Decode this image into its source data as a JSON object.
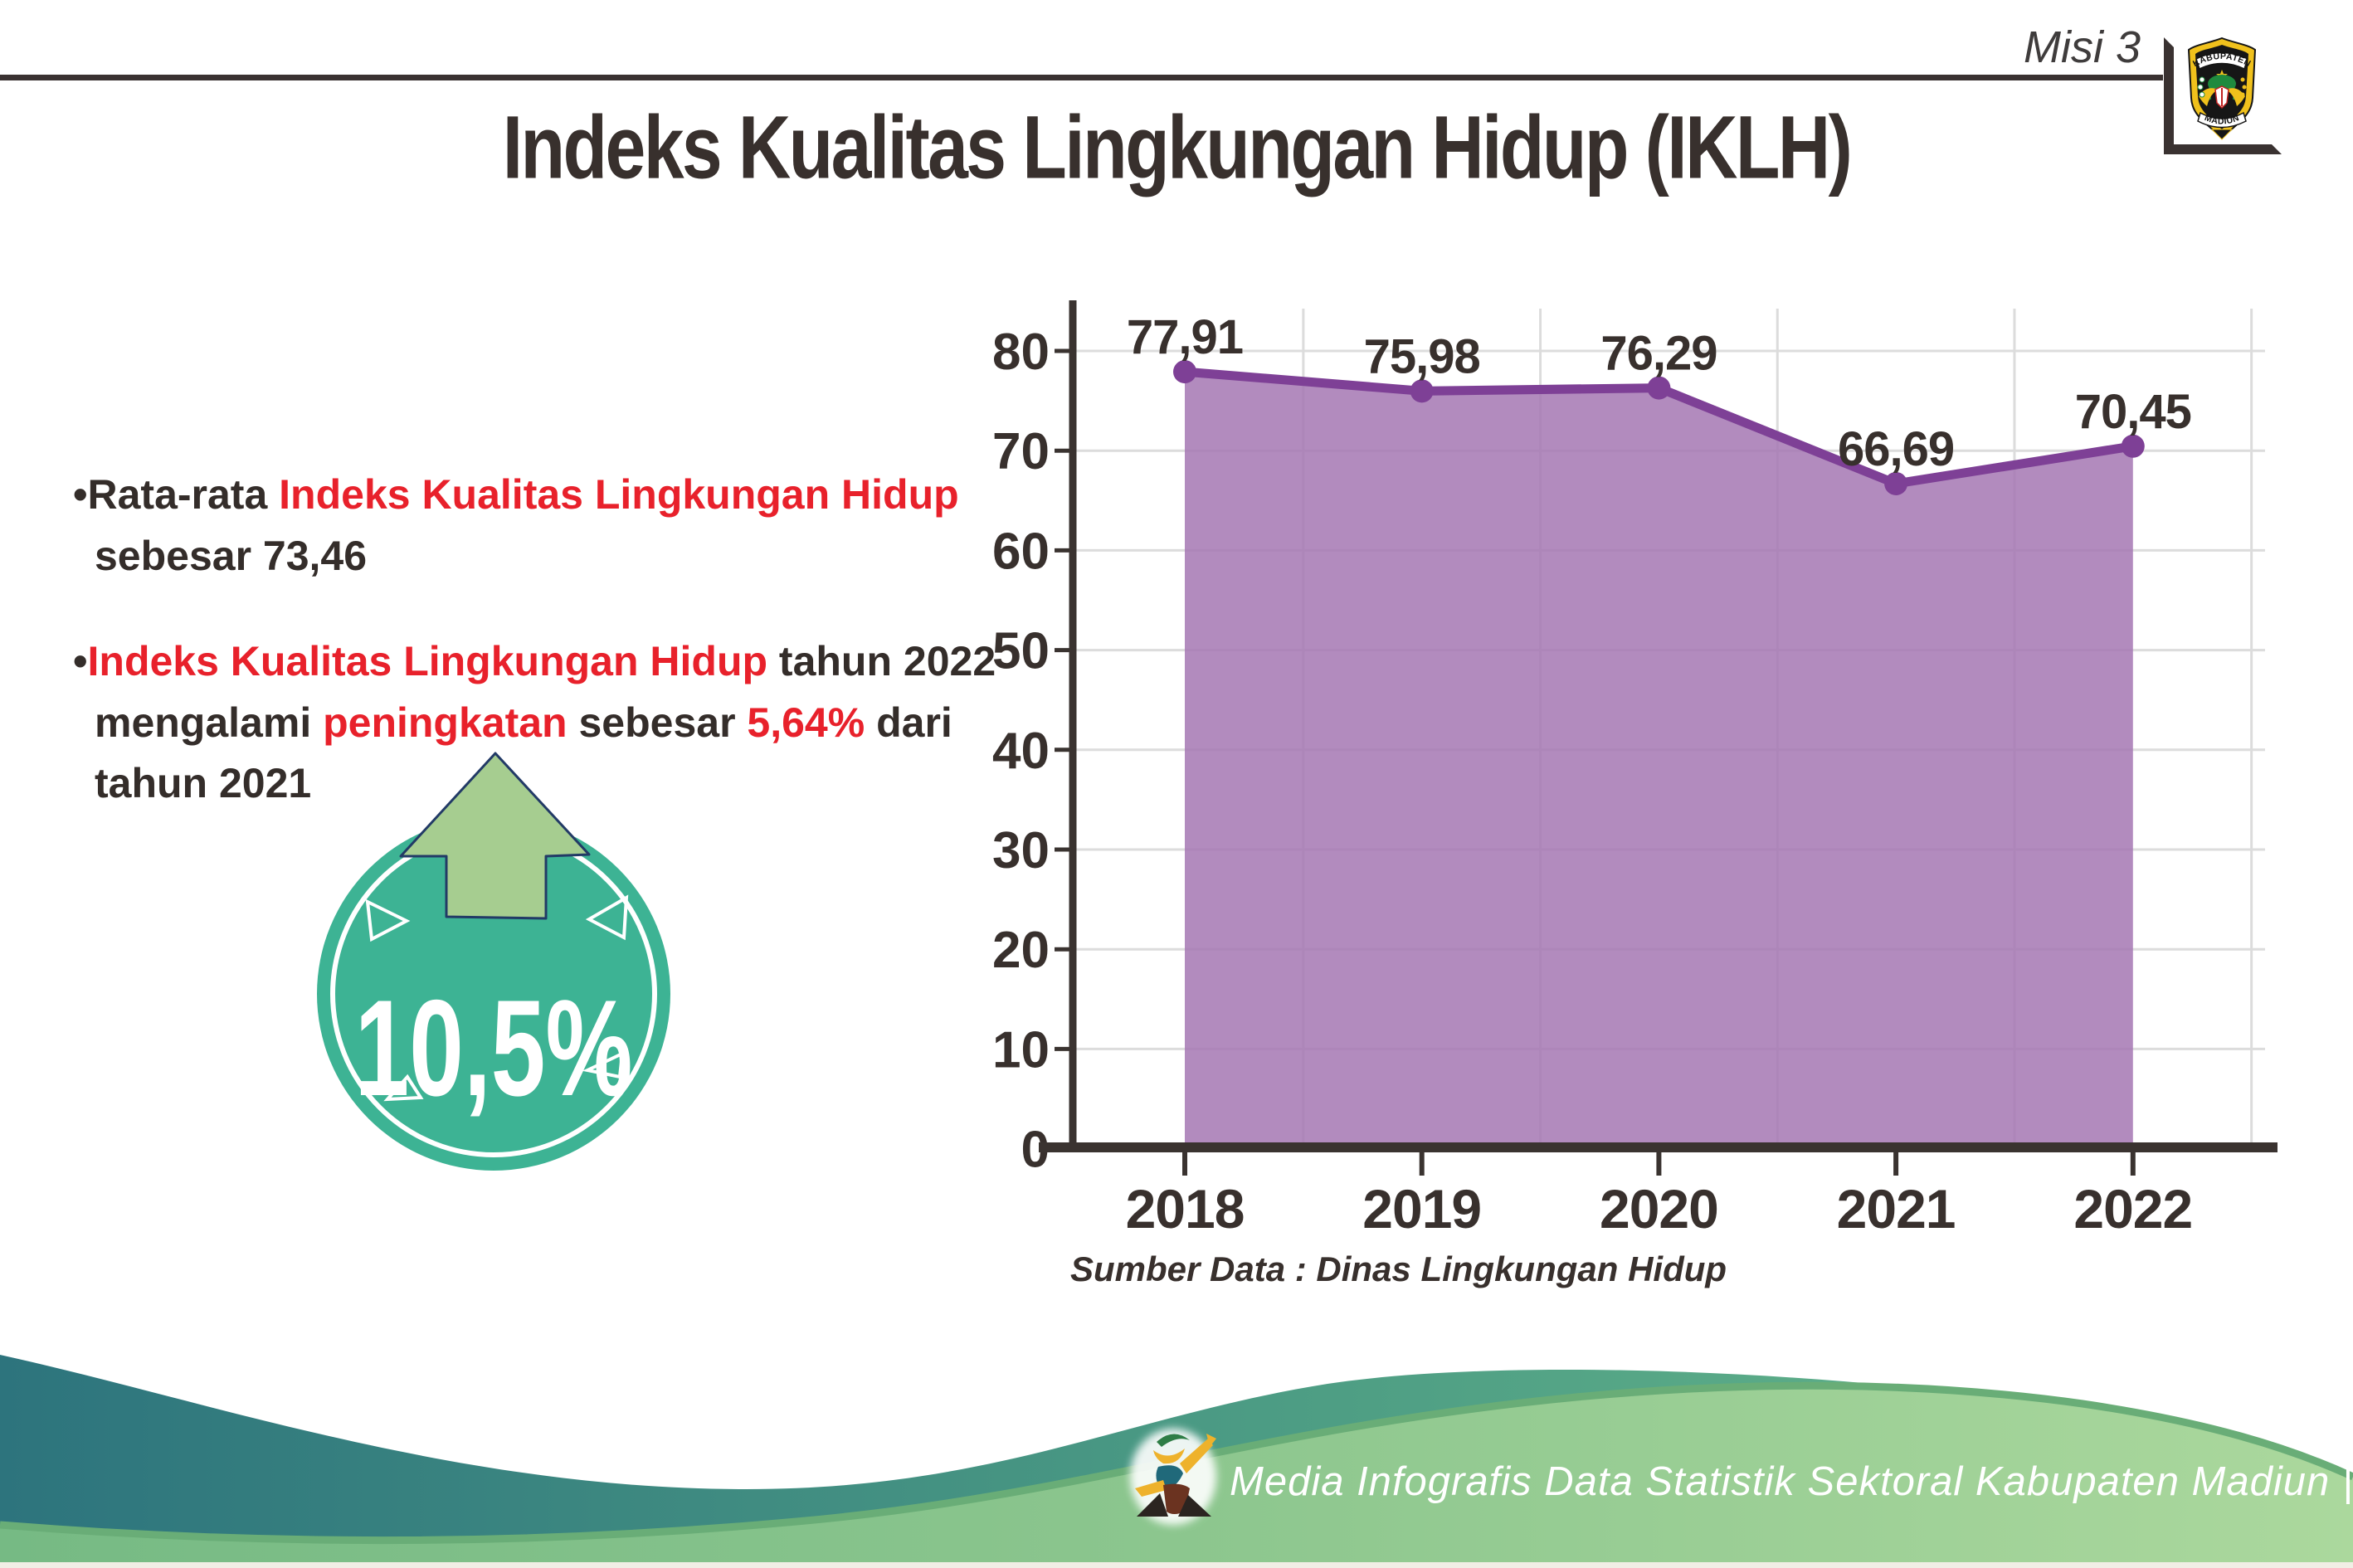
{
  "header": {
    "misi_label": "Misi 3",
    "logo": {
      "top_text": "KABUPATEN",
      "bottom_text": "MADIUN"
    }
  },
  "title": "Indeks Kualitas Lingkungan Hidup (IKLH)",
  "bullets": {
    "marker": "•",
    "b1_dark1": "Rata-rata ",
    "b1_red": "Indeks Kualitas Lingkungan Hidup",
    "b1_line2": "sebesar 73,46",
    "b2_red1": "Indeks Kualitas Lingkungan Hidup",
    "b2_dark1": " tahun 2022",
    "b2_dark2": "mengalami ",
    "b2_red2": "peningkatan",
    "b2_dark3": " sebesar ",
    "b2_red3": "5,64%",
    "b2_dark4": " dari",
    "b2_line3": "tahun 2021"
  },
  "badge": {
    "value_label": "10,5%",
    "circle_color": "#3db394",
    "arrow_color": "#a6cd90"
  },
  "chart_data": {
    "type": "area",
    "categories": [
      "2018",
      "2019",
      "2020",
      "2021",
      "2022"
    ],
    "values": [
      77.91,
      75.98,
      76.29,
      66.69,
      70.45
    ],
    "value_labels": [
      "77,91",
      "75,98",
      "76,29",
      "66,69",
      "70,45"
    ],
    "y_ticks": [
      0,
      10,
      20,
      30,
      40,
      50,
      60,
      70,
      80
    ],
    "ylim": [
      0,
      80
    ],
    "grid": true,
    "legend": "none",
    "xlabel": "",
    "ylabel": "",
    "source_note": "Sumber Data : Dinas Lingkungan Hidup",
    "fill_color": "#a577b3",
    "line_color": "#7e4096"
  },
  "footer": {
    "credit_text": "Media Infografis Data Statistik Sektoral Kabupaten Madiun |"
  }
}
